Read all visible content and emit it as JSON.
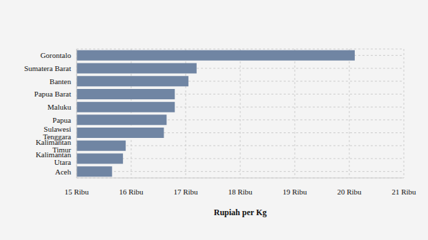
{
  "chart_data": {
    "type": "bar",
    "orientation": "horizontal",
    "x_label": "Rupiah per Kg",
    "categories": [
      "Gorontalo",
      "Sumatera Barat",
      "Banten",
      "Papua Barat",
      "Maluku",
      "Papua",
      "Sulawesi Tenggara",
      "Kalimantan Timur",
      "Kalimantan Utara",
      "Aceh"
    ],
    "values": [
      20100,
      17200,
      17050,
      16800,
      16800,
      16650,
      16600,
      15900,
      15850,
      15650
    ],
    "color": "#7085a3",
    "xlim": [
      15000,
      21000
    ],
    "xticks": [
      {
        "value": 15000,
        "label": "15 Ribu"
      },
      {
        "value": 16000,
        "label": "16 Ribu"
      },
      {
        "value": 17000,
        "label": "17 Ribu"
      },
      {
        "value": 18000,
        "label": "18 Ribu"
      },
      {
        "value": 19000,
        "label": "19 Ribu"
      },
      {
        "value": 20000,
        "label": "20 Ribu"
      },
      {
        "value": 21000,
        "label": "21 Ribu"
      }
    ],
    "grid": true
  }
}
